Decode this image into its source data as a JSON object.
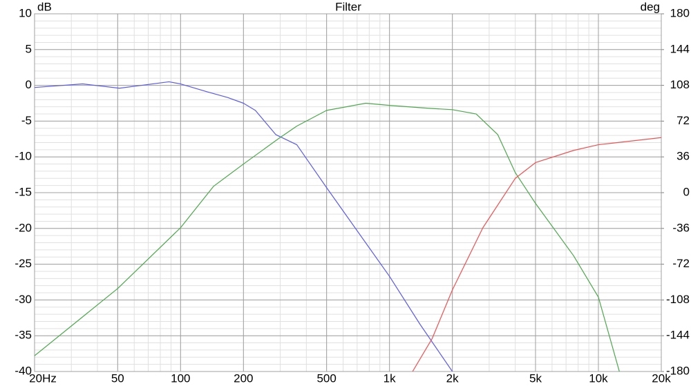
{
  "chart_data": {
    "type": "line",
    "title": "Filter",
    "ylabel": "dB",
    "y2label": "deg",
    "xscale": "log",
    "grid": true,
    "minor_grid": true,
    "xlim": [
      20,
      20000
    ],
    "xticks": [
      {
        "value": 20,
        "label": "20Hz"
      },
      50,
      100,
      200,
      500,
      {
        "value": 1000,
        "label": "1k"
      },
      {
        "value": 2000,
        "label": "2k"
      },
      {
        "value": 5000,
        "label": "5k"
      },
      {
        "value": 10000,
        "label": "10k"
      },
      {
        "value": 20000,
        "label": "20k"
      }
    ],
    "ylim": [
      -40,
      10
    ],
    "yticks": [
      10,
      5,
      0,
      -5,
      -10,
      -15,
      -20,
      -25,
      -30,
      -35,
      -40
    ],
    "y2lim": [
      -180,
      180
    ],
    "y2ticks": [
      180,
      144,
      108,
      72,
      36,
      0,
      -36,
      -72,
      -108,
      -144,
      -180
    ],
    "series": [
      {
        "color": "#5a5af0",
        "x": [
          20,
          34,
          51,
          88,
          100,
          134,
          168,
          200,
          228,
          286,
          360,
          500,
          1000,
          1400,
          2000
        ],
        "values": [
          -0.3,
          0.2,
          -0.4,
          0.5,
          0.2,
          -0.9,
          -1.7,
          -2.5,
          -3.5,
          -6.9,
          -8.3,
          -14.3,
          -26.7,
          -33.4,
          -40
        ]
      },
      {
        "color": "#4aa84a",
        "x": [
          20,
          50,
          100,
          144,
          200,
          296,
          360,
          500,
          770,
          1000,
          1530,
          2000,
          2600,
          3300,
          4000,
          5000,
          7600,
          10000,
          12600
        ],
        "values": [
          -37.8,
          -28.4,
          -19.9,
          -14.1,
          -11,
          -7.4,
          -5.7,
          -3.5,
          -2.5,
          -2.8,
          -3.2,
          -3.4,
          -4,
          -6.9,
          -12.2,
          -16.5,
          -23.8,
          -29.6,
          -40
        ]
      },
      {
        "color": "#f05050",
        "x": [
          1290,
          1600,
          2000,
          2800,
          4000,
          5000,
          7600,
          10000,
          20000
        ],
        "values": [
          -40,
          -35.4,
          -28.6,
          -19.9,
          -13,
          -10.8,
          -9.1,
          -8.3,
          -7.3
        ]
      }
    ]
  }
}
